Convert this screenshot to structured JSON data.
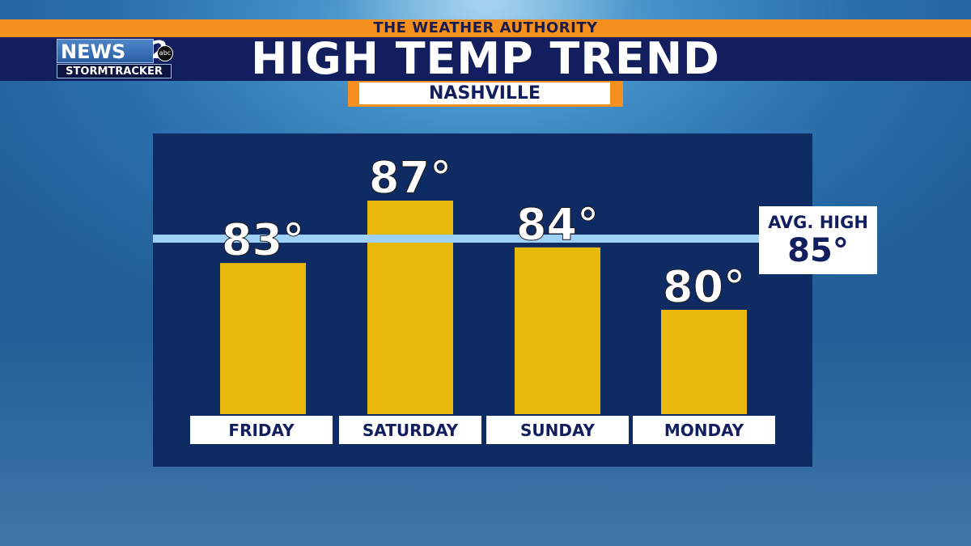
{
  "header": {
    "strip_text": "THE WEATHER AUTHORITY",
    "title": "HIGH TEMP TREND",
    "location": "NASHVILLE"
  },
  "logo": {
    "news_text": "NEWS",
    "channel_text": "2",
    "network_text": "abc",
    "sub_text": "STORMTRACKER"
  },
  "average": {
    "label": "AVG. HIGH",
    "value_text": "85°"
  },
  "colors": {
    "bar": "#e8b90c",
    "panel": "#0e2c63",
    "avg_line": "#9fd0f5",
    "accent_orange": "#f5901e",
    "title_bar": "#121e5e"
  },
  "chart_data": {
    "type": "bar",
    "categories": [
      "FRIDAY",
      "SATURDAY",
      "SUNDAY",
      "MONDAY"
    ],
    "values": [
      83,
      87,
      84,
      80
    ],
    "value_labels": [
      "83°",
      "87°",
      "84°",
      "80°"
    ],
    "reference_line": {
      "value": 85
    },
    "ylim": [
      70,
      90
    ],
    "grid": false,
    "legend": "none"
  }
}
